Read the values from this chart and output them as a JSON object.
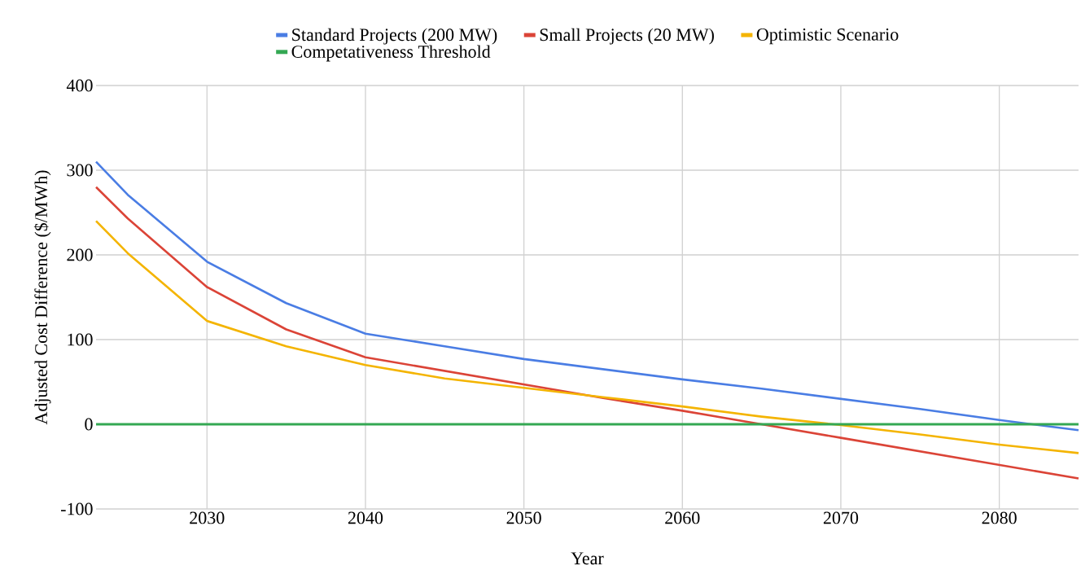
{
  "chart_data": {
    "type": "line",
    "xlabel": "Year",
    "ylabel": "Adjusted Cost Difference ($/MWh)",
    "xlim": [
      2023,
      2085
    ],
    "xticks": [
      2030,
      2040,
      2050,
      2060,
      2070,
      2080
    ],
    "ylim": [
      -100,
      400
    ],
    "yticks": [
      -100,
      0,
      100,
      200,
      300,
      400
    ],
    "grid": true,
    "legend": "top",
    "series": [
      {
        "name": "Standard Projects (200 MW)",
        "color": "#4a7de4",
        "x": [
          2023,
          2025,
          2030,
          2035,
          2040,
          2045,
          2050,
          2055,
          2060,
          2065,
          2070,
          2075,
          2080,
          2085
        ],
        "values": [
          310,
          271,
          192,
          143,
          107,
          92,
          77,
          65,
          53,
          42,
          30,
          18,
          5,
          -7
        ]
      },
      {
        "name": "Small Projects (20 MW)",
        "color": "#db4437",
        "x": [
          2023,
          2025,
          2030,
          2035,
          2040,
          2045,
          2050,
          2055,
          2060,
          2065,
          2070,
          2075,
          2080,
          2085
        ],
        "values": [
          280,
          243,
          162,
          112,
          79,
          63,
          47,
          31,
          16,
          0,
          -16,
          -32,
          -48,
          -64
        ]
      },
      {
        "name": "Optimistic Scenario",
        "color": "#f4b400",
        "x": [
          2023,
          2025,
          2030,
          2035,
          2040,
          2045,
          2050,
          2055,
          2060,
          2065,
          2070,
          2075,
          2080,
          2085
        ],
        "values": [
          240,
          202,
          122,
          92,
          70,
          54,
          43,
          32,
          21,
          9,
          -1,
          -12,
          -24,
          -34
        ]
      },
      {
        "name": "Competativeness Threshold",
        "color": "#34a853",
        "x": [
          2023,
          2085
        ],
        "values": [
          0,
          0
        ]
      }
    ]
  }
}
